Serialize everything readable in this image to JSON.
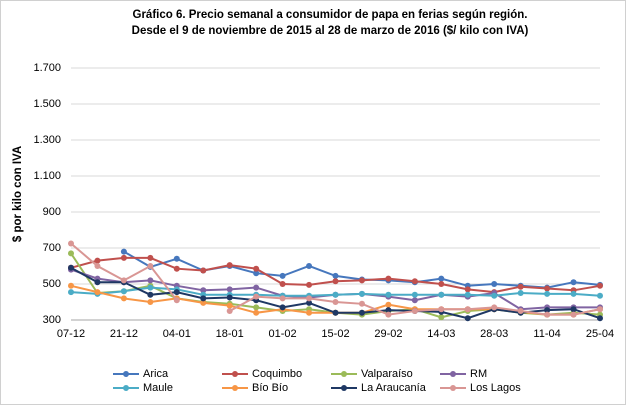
{
  "chart_data": {
    "type": "line",
    "title": "Gráfico 6. Precio semanal a consumidor de papa en ferias según región.",
    "subtitle": "Desde el 9 de noviembre de 2015 al 28 de marzo de 2016 ($/ kilo con IVA)",
    "y_label": "$ por kilo con IVA",
    "categories": [
      "07-12",
      null,
      "21-12",
      null,
      "04-01",
      null,
      "18-01",
      null,
      "01-02",
      null,
      "15-02",
      null,
      "29-02",
      null,
      "14-03",
      null,
      "28-03",
      null,
      "11-04",
      null,
      "25-04"
    ],
    "ylim": [
      300,
      1700
    ],
    "yticks": [
      300,
      500,
      700,
      900,
      {
        "value": 1100,
        "label": "1.100"
      },
      {
        "value": 1300,
        "label": "1.300"
      },
      {
        "value": 1500,
        "label": "1.500"
      },
      {
        "value": 1700,
        "label": "1.700"
      }
    ],
    "grid": true,
    "legend": "bottom",
    "series": [
      {
        "name": "Arica",
        "color": "#4677bd",
        "values": [
          null,
          null,
          680,
          595,
          640,
          575,
          600,
          560,
          545,
          600,
          545,
          525,
          520,
          510,
          530,
          490,
          500,
          490,
          480,
          510,
          495
        ]
      },
      {
        "name": "Coquimbo",
        "color": "#c0504d",
        "values": [
          590,
          630,
          645,
          645,
          585,
          575,
          605,
          585,
          500,
          495,
          515,
          520,
          530,
          515,
          500,
          470,
          455,
          485,
          475,
          465,
          490
        ]
      },
      {
        "name": "Valparaíso",
        "color": "#9bbb59",
        "values": [
          670,
          450,
          460,
          490,
          420,
          400,
          390,
          370,
          350,
          360,
          340,
          330,
          350,
          360,
          315,
          350,
          360,
          340,
          330,
          340,
          330
        ]
      },
      {
        "name": "RM",
        "color": "#8064a2",
        "values": [
          580,
          530,
          510,
          520,
          490,
          465,
          470,
          480,
          435,
          425,
          440,
          445,
          430,
          410,
          440,
          430,
          450,
          360,
          370,
          370,
          370
        ]
      },
      {
        "name": "Maule",
        "color": "#4bacc6",
        "values": [
          455,
          445,
          460,
          480,
          470,
          440,
          440,
          440,
          435,
          435,
          440,
          445,
          440,
          440,
          440,
          440,
          435,
          450,
          445,
          445,
          435
        ]
      },
      {
        "name": "Bío Bío",
        "color": "#f79646",
        "values": [
          490,
          455,
          420,
          400,
          420,
          395,
          380,
          340,
          360,
          340,
          340,
          340,
          385,
          360,
          360,
          360,
          360,
          345,
          330,
          330,
          360
        ]
      },
      {
        "name": "La Araucanía",
        "color": "#1f3864",
        "values": [
          590,
          510,
          510,
          440,
          455,
          420,
          425,
          410,
          370,
          395,
          340,
          340,
          355,
          350,
          345,
          310,
          360,
          340,
          355,
          360,
          310
        ]
      },
      {
        "name": "Los Lagos",
        "color": "#d99694",
        "values": [
          725,
          600,
          520,
          600,
          410,
          null,
          350,
          430,
          420,
          420,
          400,
          390,
          330,
          350,
          360,
          360,
          370,
          350,
          330,
          330,
          360
        ]
      }
    ]
  }
}
